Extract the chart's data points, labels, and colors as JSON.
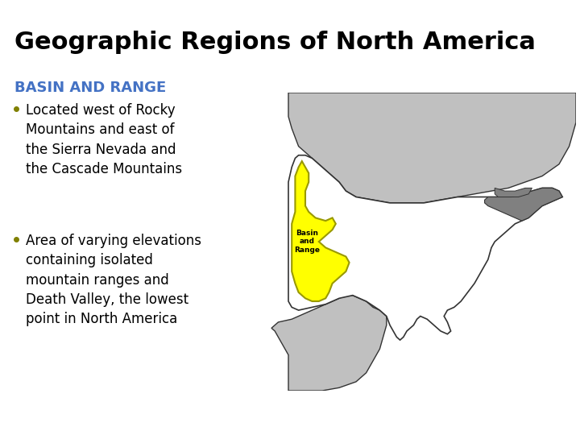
{
  "title": "Geographic Regions of North America",
  "title_fontsize": 22,
  "title_fontweight": "bold",
  "title_color": "#000000",
  "subtitle": "BASIN AND RANGE",
  "subtitle_color": "#4472C4",
  "subtitle_fontsize": 13,
  "subtitle_fontweight": "bold",
  "bullet_color": "#808000",
  "bullet_fontsize": 12,
  "bullets": [
    "Located west of Rocky\nMountains and east of\nthe Sierra Nevada and\nthe Cascade Mountains",
    "Area of varying elevations\ncontaining isolated\nmountain ranges and\nDeath Valley, the lowest\npoint in North America"
  ],
  "background_color": "#FFFFFF",
  "map_label": "Basin\nand\nRange",
  "map_label_fontsize": 6.5,
  "map_label_color": "#000000",
  "canada_color": "#C0C0C0",
  "mexico_color": "#C0C0C0",
  "great_lakes_color": "#808080",
  "usa_color": "#FFFFFF",
  "basin_color": "#FFFF00",
  "map_edge_color": "#333333",
  "basin_edge_color": "#999900"
}
